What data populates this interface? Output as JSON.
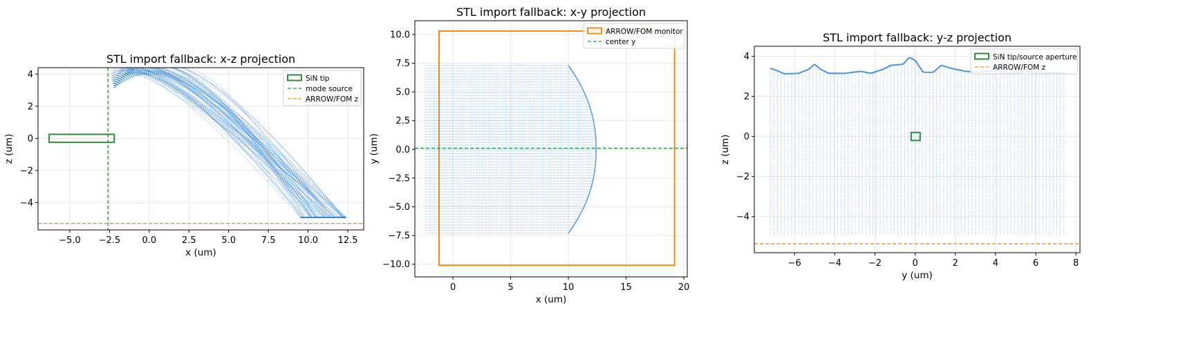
{
  "figure": {
    "background": "#ffffff"
  },
  "colors": {
    "trace": "#2b7fd4",
    "tip": "#2e8b3d",
    "source": "#2e8b3d",
    "arrow": "#ef8c15",
    "grid": "#e6e6e6"
  },
  "chart_data": [
    {
      "id": "xz",
      "type": "scatter",
      "title": "STL import fallback: x-z projection",
      "xlabel": "x (um)",
      "ylabel": "z (um)",
      "xlim": [
        -7.0,
        13.5
      ],
      "ylim": [
        -5.7,
        4.4
      ],
      "xticks": [
        -5.0,
        -2.5,
        0.0,
        2.5,
        5.0,
        7.5,
        10.0,
        12.5
      ],
      "xtick_labels": [
        "−5.0",
        "−2.5",
        "0.0",
        "2.5",
        "5.0",
        "7.5",
        "10.0",
        "12.5"
      ],
      "yticks": [
        -4,
        -2,
        0,
        2,
        4
      ],
      "ytick_labels": [
        "−4",
        "−2",
        "0",
        "2",
        "4"
      ],
      "grid": true,
      "legend": {
        "position": "upper right",
        "entries": [
          "SiN tip",
          "mode source",
          "ARROW/FOM z"
        ]
      },
      "series": [
        {
          "name": "SiN tip",
          "kind": "rectangle",
          "x": [
            -6.3,
            -2.2
          ],
          "y": [
            -0.25,
            0.25
          ],
          "color": "#2e8b3d"
        },
        {
          "name": "mode source",
          "kind": "vline",
          "x": -2.6,
          "color": "#2e8b3d"
        },
        {
          "name": "ARROW/FOM z",
          "kind": "hline",
          "y": -5.3,
          "color": "#ef8c15"
        },
        {
          "kind": "trace_bundle",
          "start": [
            -2.2,
            3.15
          ],
          "end_x": [
            9.5,
            12.5
          ],
          "end_y": -4.9,
          "apex_x": [
            0.5,
            3.5
          ],
          "apex_y": [
            2.9,
            3.95
          ],
          "color": "#2b7fd4"
        }
      ]
    },
    {
      "id": "xy",
      "type": "scatter",
      "title": "STL import fallback: x-y projection",
      "xlabel": "x (um)",
      "ylabel": "y (um)",
      "xlim": [
        -3.3,
        20.3
      ],
      "ylim": [
        -11.1,
        11.2
      ],
      "xticks": [
        0,
        5,
        10,
        15,
        20
      ],
      "xtick_labels": [
        "0",
        "5",
        "10",
        "15",
        "20"
      ],
      "yticks": [
        -10.0,
        -7.5,
        -5.0,
        -2.5,
        0.0,
        2.5,
        5.0,
        7.5,
        10.0
      ],
      "ytick_labels": [
        "−10.0",
        "−7.5",
        "−5.0",
        "−2.5",
        "0.0",
        "2.5",
        "5.0",
        "7.5",
        "10.0"
      ],
      "grid": true,
      "legend": {
        "position": "upper right",
        "entries": [
          "ARROW/FOM monitor",
          "center y"
        ]
      },
      "series": [
        {
          "name": "ARROW/FOM monitor",
          "kind": "rectangle",
          "x": [
            -1.2,
            19.2
          ],
          "y": [
            -10.1,
            10.3
          ],
          "color": "#ef8c15"
        },
        {
          "name": "center y",
          "kind": "hline",
          "y": 0.1,
          "color": "#2e8b3d"
        },
        {
          "kind": "trace_region",
          "x_start": -2.4,
          "x_edge_top": 10.0,
          "x_edge_mid": 12.4,
          "y": [
            -7.3,
            7.3
          ],
          "color": "#2b7fd4"
        }
      ]
    },
    {
      "id": "yz",
      "type": "scatter",
      "title": "STL import fallback: y-z projection",
      "xlabel": "y (um)",
      "ylabel": "z (um)",
      "xlim": [
        -8.0,
        8.2
      ],
      "ylim": [
        -5.8,
        4.5
      ],
      "xticks": [
        -6,
        -4,
        -2,
        0,
        2,
        4,
        6,
        8
      ],
      "xtick_labels": [
        "−6",
        "−4",
        "−2",
        "0",
        "2",
        "4",
        "6",
        "8"
      ],
      "yticks": [
        -4,
        -2,
        0,
        2,
        4
      ],
      "ytick_labels": [
        "−4",
        "−2",
        "0",
        "2",
        "4"
      ],
      "grid": true,
      "legend": {
        "position": "upper right",
        "entries": [
          "SiN tip/source aperture",
          "ARROW/FOM z"
        ]
      },
      "series": [
        {
          "name": "SiN tip/source aperture",
          "kind": "rectangle",
          "x": [
            -0.2,
            0.25
          ],
          "y": [
            -0.2,
            0.2
          ],
          "color": "#2e8b3d"
        },
        {
          "name": "ARROW/FOM z",
          "kind": "hline",
          "y": -5.35,
          "color": "#ef8c15"
        },
        {
          "kind": "trace_columns",
          "x": [
            -7.2,
            7.4
          ],
          "z_bottom": -4.9,
          "color": "#2b7fd4",
          "top_profile": [
            [
              -7.2,
              3.4
            ],
            [
              -6.9,
              3.3
            ],
            [
              -6.5,
              3.12
            ],
            [
              -5.8,
              3.15
            ],
            [
              -5.3,
              3.35
            ],
            [
              -5.0,
              3.6
            ],
            [
              -4.7,
              3.35
            ],
            [
              -4.3,
              3.15
            ],
            [
              -3.5,
              3.15
            ],
            [
              -2.7,
              3.25
            ],
            [
              -2.2,
              3.15
            ],
            [
              -1.6,
              3.35
            ],
            [
              -1.2,
              3.55
            ],
            [
              -0.6,
              3.6
            ],
            [
              -0.3,
              3.95
            ],
            [
              0.0,
              3.8
            ],
            [
              0.4,
              3.2
            ],
            [
              0.9,
              3.2
            ],
            [
              1.3,
              3.55
            ],
            [
              1.8,
              3.4
            ],
            [
              2.5,
              3.25
            ],
            [
              3.2,
              3.2
            ],
            [
              4.0,
              3.3
            ],
            [
              4.7,
              3.15
            ],
            [
              5.5,
              3.25
            ],
            [
              6.2,
              3.15
            ],
            [
              7.0,
              3.2
            ],
            [
              7.4,
              3.15
            ]
          ]
        }
      ]
    }
  ]
}
